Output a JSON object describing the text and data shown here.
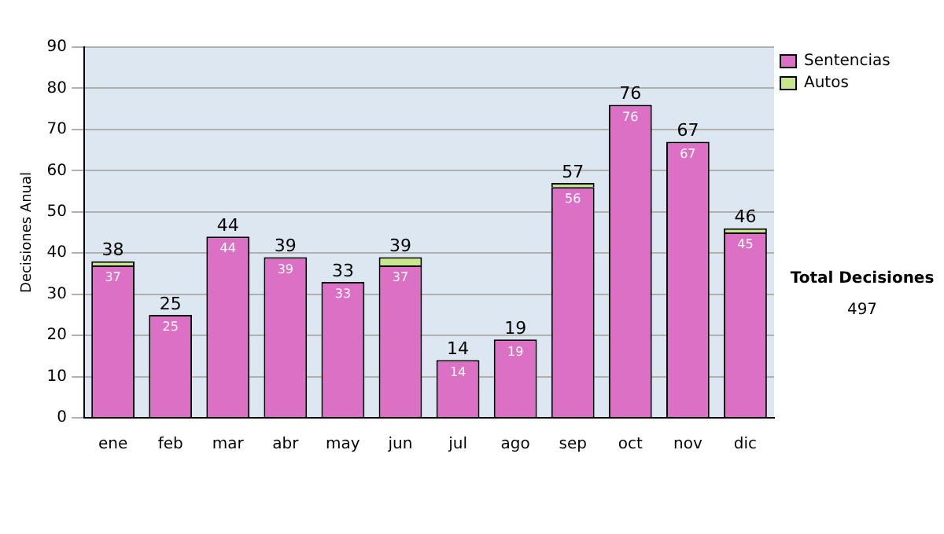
{
  "chart_data": {
    "type": "bar",
    "stacked": true,
    "ylabel": "Decisiones Anual",
    "categories": [
      "ene",
      "feb",
      "mar",
      "abr",
      "may",
      "jun",
      "jul",
      "ago",
      "sep",
      "oct",
      "nov",
      "dic"
    ],
    "series": [
      {
        "name": "Sentencias",
        "color": "#db70c4",
        "values": [
          37,
          25,
          44,
          39,
          33,
          37,
          14,
          19,
          56,
          76,
          67,
          45
        ],
        "value_labels": [
          "37",
          "25",
          "44",
          "39",
          "33",
          "37",
          "14",
          "19",
          "56",
          "76",
          "67",
          "45"
        ]
      },
      {
        "name": "Autos",
        "color": "#c8e68a",
        "values": [
          1,
          0,
          0,
          0,
          0,
          2,
          0,
          0,
          1,
          0,
          0,
          1
        ]
      }
    ],
    "totals": [
      "38",
      "25",
      "44",
      "39",
      "33",
      "39",
      "14",
      "19",
      "57",
      "76",
      "67",
      "46"
    ],
    "ylim": [
      0,
      90
    ],
    "yticks": [
      0,
      10,
      20,
      30,
      40,
      50,
      60,
      70,
      80,
      90
    ],
    "grid": "y",
    "legend": "right",
    "annotations": [
      "Total Decisiones",
      "497"
    ]
  }
}
